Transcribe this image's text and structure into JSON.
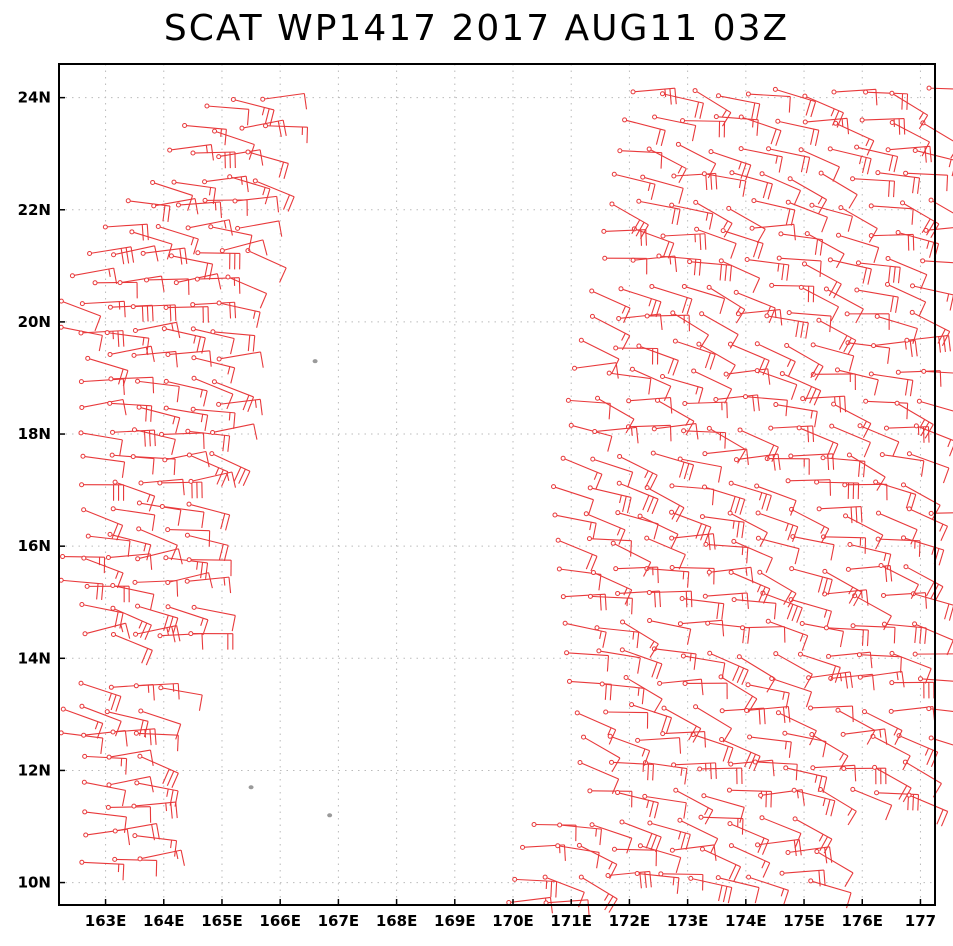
{
  "chart_data": {
    "type": "scatter",
    "title": "SCAT WP1417 2017 AUG11 03Z",
    "xlabel": "",
    "ylabel": "",
    "xlim": [
      162.2,
      177.25
    ],
    "ylim": [
      9.6,
      24.6
    ],
    "x_ticks": [
      {
        "value": 163,
        "label": "163E"
      },
      {
        "value": 164,
        "label": "164E"
      },
      {
        "value": 165,
        "label": "165E"
      },
      {
        "value": 166,
        "label": "166E"
      },
      {
        "value": 167,
        "label": "167E"
      },
      {
        "value": 168,
        "label": "168E"
      },
      {
        "value": 169,
        "label": "169E"
      },
      {
        "value": 170,
        "label": "170E"
      },
      {
        "value": 171,
        "label": "171E"
      },
      {
        "value": 172,
        "label": "172E"
      },
      {
        "value": 173,
        "label": "173E"
      },
      {
        "value": 174,
        "label": "174E"
      },
      {
        "value": 175,
        "label": "175E"
      },
      {
        "value": 176,
        "label": "176E"
      },
      {
        "value": 177,
        "label": "177"
      }
    ],
    "y_ticks": [
      {
        "value": 10,
        "label": "10N"
      },
      {
        "value": 12,
        "label": "12N"
      },
      {
        "value": 14,
        "label": "14N"
      },
      {
        "value": 16,
        "label": "16N"
      },
      {
        "value": 18,
        "label": "18N"
      },
      {
        "value": 20,
        "label": "20N"
      },
      {
        "value": 22,
        "label": "22N"
      },
      {
        "value": 24,
        "label": "24N"
      }
    ],
    "grid": true,
    "barb_color": "#e8393b",
    "land_color": "#9a9a9a",
    "swaths": [
      {
        "lon_start": 162.2,
        "lon_end": 166.0,
        "lat_start": 10.4,
        "lat_end": 24.2,
        "spacing": 0.45,
        "shape": "west"
      },
      {
        "lon_start": 170.0,
        "lon_end": 177.25,
        "lat_start": 9.6,
        "lat_end": 24.2,
        "spacing": 0.5,
        "shape": "east"
      }
    ],
    "islands": [
      {
        "lon": 166.6,
        "lat": 19.3
      },
      {
        "lon": 165.5,
        "lat": 11.7
      },
      {
        "lon": 166.85,
        "lat": 11.2
      }
    ]
  }
}
